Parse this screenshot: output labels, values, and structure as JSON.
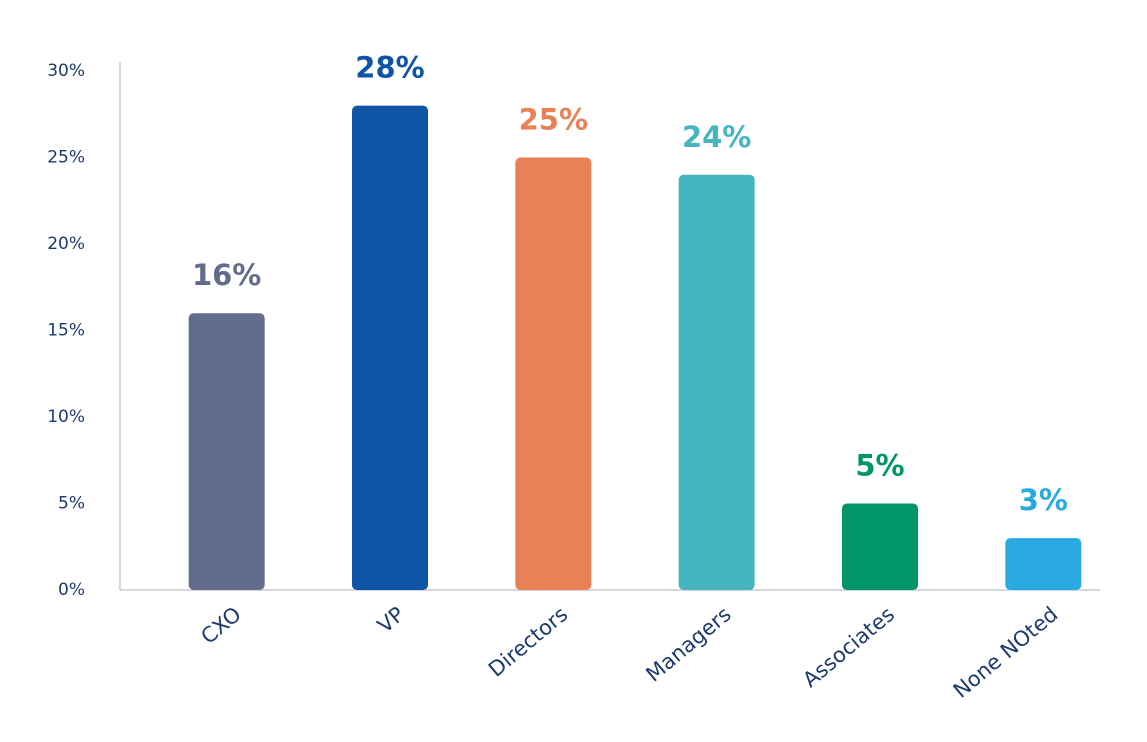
{
  "chart_data": {
    "type": "bar",
    "categories": [
      "CXO",
      "VP",
      "Directors",
      "Managers",
      "Associates",
      "None NOted"
    ],
    "values": [
      16,
      28,
      25,
      24,
      5,
      3
    ],
    "value_labels": [
      "16%",
      "28%",
      "25%",
      "24%",
      "5%",
      "3%"
    ],
    "colors": [
      "#626c8c",
      "#1055a5",
      "#ea8055",
      "#45b5c0",
      "#009668",
      "#29a9e1"
    ],
    "ylim": [
      0,
      30
    ],
    "yticks": [
      {
        "value": 0,
        "label": "0%"
      },
      {
        "value": 5,
        "label": "5%"
      },
      {
        "value": 10,
        "label": "10%"
      },
      {
        "value": 15,
        "label": "15%"
      },
      {
        "value": 20,
        "label": "20%"
      },
      {
        "value": 25,
        "label": "25%"
      },
      {
        "value": 30,
        "label": "30%"
      }
    ],
    "grid": false
  }
}
